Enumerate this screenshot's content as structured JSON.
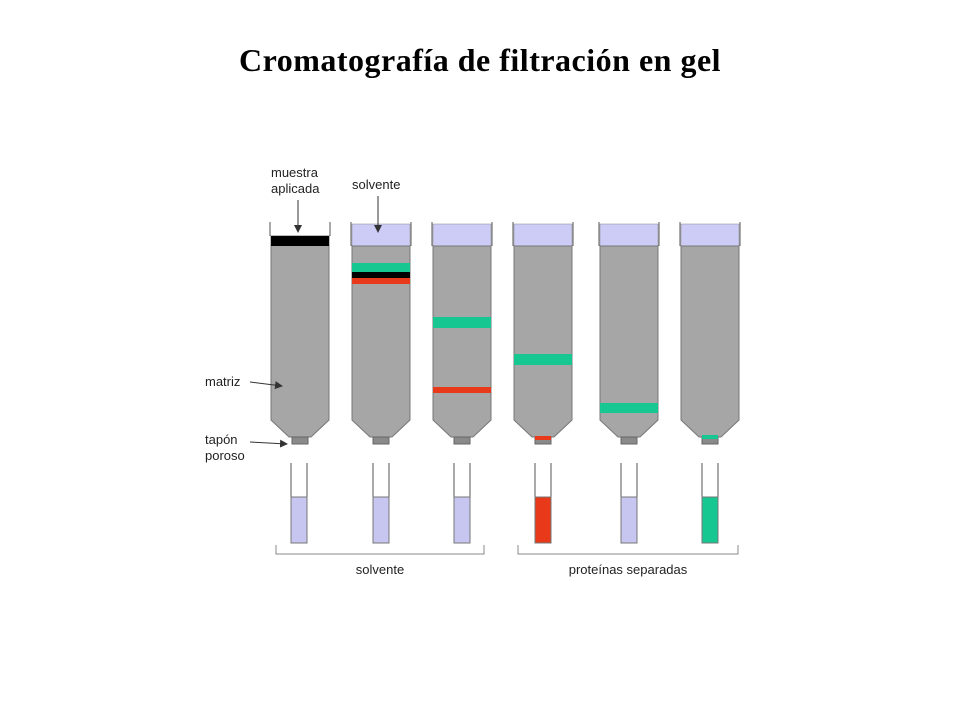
{
  "title": "Cromatografía de filtración en gel",
  "labels": {
    "sample": [
      "muestra",
      "aplicada"
    ],
    "solvent_top": "solvente",
    "matrix": "matriz",
    "plug": [
      "tapón",
      "poroso"
    ],
    "group_solvent": "solvente",
    "group_proteins": "proteínas separadas"
  },
  "colors": {
    "column": "#a6a6a6",
    "solvent": "#ccccf7",
    "sample": "#000000",
    "green_band": "#17c792",
    "red_band": "#e8391a",
    "tube_solvent": "#c6c6f0",
    "outline": "#555555"
  },
  "columns": [
    {
      "top": "sample",
      "bands": []
    },
    {
      "top": "solvent",
      "bands": [
        "green",
        "black",
        "red"
      ]
    },
    {
      "top": "solvent",
      "bands": [
        "green",
        "red"
      ]
    },
    {
      "top": "solvent",
      "bands": [
        "green",
        "red"
      ]
    },
    {
      "top": "solvent",
      "bands": [
        "green"
      ]
    },
    {
      "top": "solvent",
      "bands": [
        "green"
      ]
    }
  ],
  "tubes": [
    "solvent",
    "solvent",
    "solvent",
    "red",
    "solvent",
    "green"
  ]
}
